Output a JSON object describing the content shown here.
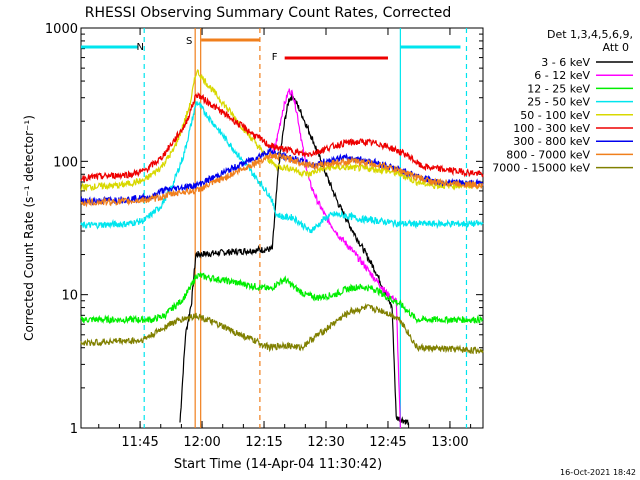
{
  "chart_data": {
    "type": "line",
    "title": "RHESSI Observing Summary Count Rates, Corrected",
    "xlabel": "Start Time (14-Apr-04 11:30:42)",
    "ylabel": "Corrected Count Rate (s⁻¹ detector⁻¹)",
    "y_scale": "log",
    "ylim": [
      1,
      1000
    ],
    "xlim": [
      "11:30:42",
      "13:08:00"
    ],
    "x_ticks": [
      "11:45",
      "12:00",
      "12:15",
      "12:30",
      "12:45",
      "13:00"
    ],
    "y_ticks": [
      "1",
      "10",
      "100",
      "1000"
    ],
    "legend_header": [
      "Det 1,3,4,5,6,9,",
      "Att 0"
    ],
    "legend_position": "right",
    "footer_date": "16-Oct-2021 18:42",
    "flags": [
      {
        "label": "N",
        "color": "#00e5ee"
      },
      {
        "label": "S",
        "color": "#f07f1c"
      },
      {
        "label": "F",
        "color": "#ee0000"
      }
    ],
    "series": [
      {
        "name": "3 - 6 keV",
        "color": "#000000",
        "points": [
          [
            "11:54:40",
            1.1
          ],
          [
            "11:55:10",
            2
          ],
          [
            "11:56:00",
            5
          ],
          [
            "11:57:30",
            9
          ],
          [
            "11:58:30",
            20
          ],
          [
            "12:17:00",
            22
          ],
          [
            "12:18:30",
            90
          ],
          [
            "12:20:00",
            200
          ],
          [
            "12:21:00",
            290
          ],
          [
            "12:22:00",
            310
          ],
          [
            "12:24:00",
            230
          ],
          [
            "12:27:00",
            140
          ],
          [
            "12:30:00",
            80
          ],
          [
            "12:33:00",
            48
          ],
          [
            "12:36:00",
            32
          ],
          [
            "12:39:00",
            22
          ],
          [
            "12:42:00",
            15
          ],
          [
            "12:44:00",
            11
          ],
          [
            "12:46:00",
            8
          ],
          [
            "12:47:00",
            1.2
          ],
          [
            "12:50:00",
            1.1
          ]
        ]
      },
      {
        "name": "6 - 12 keV",
        "color": "#ff00ff",
        "points": [
          [
            "12:16:30",
            100
          ],
          [
            "12:18:00",
            140
          ],
          [
            "12:19:30",
            240
          ],
          [
            "12:21:00",
            340
          ],
          [
            "12:22:00",
            320
          ],
          [
            "12:23:00",
            230
          ],
          [
            "12:24:30",
            120
          ],
          [
            "12:26:00",
            70
          ],
          [
            "12:28:00",
            50
          ],
          [
            "12:30:00",
            38
          ],
          [
            "12:33:00",
            28
          ],
          [
            "12:36:00",
            22
          ],
          [
            "12:39:00",
            17
          ],
          [
            "12:42:00",
            13
          ],
          [
            "12:45:00",
            10
          ],
          [
            "12:47:00",
            9
          ],
          [
            "12:48:00",
            1
          ]
        ]
      },
      {
        "name": "12 - 25 keV",
        "color": "#00ee00",
        "points": [
          [
            "11:30:42",
            6.5
          ],
          [
            "11:45:00",
            6.5
          ],
          [
            "11:48:00",
            6.5
          ],
          [
            "11:51:00",
            7
          ],
          [
            "11:53:00",
            8
          ],
          [
            "11:55:00",
            9
          ],
          [
            "11:57:00",
            11
          ],
          [
            "11:58:40",
            14
          ],
          [
            "12:16:30",
            11
          ],
          [
            "12:18:00",
            12
          ],
          [
            "12:20:00",
            13
          ],
          [
            "12:23:00",
            11
          ],
          [
            "12:25:00",
            10
          ],
          [
            "12:28:00",
            9.5
          ],
          [
            "12:32:00",
            10
          ],
          [
            "12:35:00",
            11
          ],
          [
            "12:38:00",
            11.5
          ],
          [
            "12:42:00",
            11
          ],
          [
            "12:45:00",
            9.5
          ],
          [
            "12:48:00",
            8.5
          ],
          [
            "12:52:00",
            6.5
          ],
          [
            "13:08:00",
            6.5
          ]
        ]
      },
      {
        "name": "25 - 50 keV",
        "color": "#00e5ee",
        "points": [
          [
            "11:30:42",
            33
          ],
          [
            "11:42:00",
            34
          ],
          [
            "11:46:00",
            36
          ],
          [
            "11:50:00",
            46
          ],
          [
            "11:53:00",
            68
          ],
          [
            "11:55:30",
            110
          ],
          [
            "11:57:00",
            170
          ],
          [
            "11:58:40",
            280
          ],
          [
            "12:16:30",
            55
          ],
          [
            "12:18:00",
            40
          ],
          [
            "12:20:00",
            38
          ],
          [
            "12:22:00",
            38
          ],
          [
            "12:24:00",
            34
          ],
          [
            "12:26:00",
            30
          ],
          [
            "12:28:00",
            33
          ],
          [
            "12:30:00",
            38
          ],
          [
            "12:32:00",
            40
          ],
          [
            "12:35:00",
            39
          ],
          [
            "12:38:00",
            37
          ],
          [
            "12:42:00",
            36
          ],
          [
            "12:45:00",
            35
          ],
          [
            "12:48:00",
            34
          ],
          [
            "13:08:00",
            34
          ]
        ]
      },
      {
        "name": "50 - 100 keV",
        "color": "#d8d800",
        "points": [
          [
            "11:30:42",
            64
          ],
          [
            "11:40:00",
            66
          ],
          [
            "11:46:00",
            72
          ],
          [
            "11:50:00",
            90
          ],
          [
            "11:53:00",
            120
          ],
          [
            "11:55:00",
            170
          ],
          [
            "11:57:00",
            260
          ],
          [
            "11:58:40",
            480
          ],
          [
            "12:16:30",
            100
          ],
          [
            "12:18:00",
            92
          ],
          [
            "12:20:00",
            90
          ],
          [
            "12:22:00",
            88
          ],
          [
            "12:24:00",
            82
          ],
          [
            "12:26:00",
            80
          ],
          [
            "12:28:00",
            86
          ],
          [
            "12:31:00",
            90
          ],
          [
            "12:35:00",
            90
          ],
          [
            "12:40:00",
            88
          ],
          [
            "12:44:00",
            86
          ],
          [
            "12:48:00",
            80
          ],
          [
            "12:52:00",
            70
          ],
          [
            "12:56:00",
            66
          ],
          [
            "13:08:00",
            66
          ]
        ]
      },
      {
        "name": "100 - 300 keV",
        "color": "#ee0000",
        "points": [
          [
            "11:30:42",
            75
          ],
          [
            "11:38:00",
            78
          ],
          [
            "11:43:00",
            80
          ],
          [
            "11:46:00",
            85
          ],
          [
            "11:50:00",
            105
          ],
          [
            "11:53:00",
            140
          ],
          [
            "11:56:00",
            190
          ],
          [
            "11:58:40",
            320
          ],
          [
            "12:16:30",
            130
          ],
          [
            "12:19:00",
            125
          ],
          [
            "12:22:00",
            120
          ],
          [
            "12:25:00",
            112
          ],
          [
            "12:28:00",
            118
          ],
          [
            "12:31:00",
            128
          ],
          [
            "12:35:00",
            138
          ],
          [
            "12:39:00",
            140
          ],
          [
            "12:43:00",
            135
          ],
          [
            "12:46:00",
            125
          ],
          [
            "12:50:00",
            110
          ],
          [
            "12:53:00",
            92
          ],
          [
            "12:57:00",
            88
          ],
          [
            "13:08:00",
            80
          ]
        ]
      },
      {
        "name": "300 - 800 keV",
        "color": "#0000ee",
        "points": [
          [
            "11:30:42",
            50
          ],
          [
            "11:42:00",
            52
          ],
          [
            "11:48:00",
            54
          ],
          [
            "11:50:00",
            60
          ],
          [
            "11:54:00",
            63
          ],
          [
            "11:58:40",
            66
          ],
          [
            "12:16:30",
            120
          ],
          [
            "12:19:00",
            110
          ],
          [
            "12:22:00",
            105
          ],
          [
            "12:25:00",
            98
          ],
          [
            "12:27:00",
            93
          ],
          [
            "12:30:00",
            100
          ],
          [
            "12:34:00",
            106
          ],
          [
            "12:38:00",
            104
          ],
          [
            "12:42:00",
            98
          ],
          [
            "12:46:00",
            90
          ],
          [
            "12:50:00",
            82
          ],
          [
            "12:54:00",
            74
          ],
          [
            "12:57:00",
            70
          ],
          [
            "13:08:00",
            68
          ]
        ]
      },
      {
        "name": "800 - 7000 keV",
        "color": "#f07f1c",
        "points": [
          [
            "11:30:42",
            49
          ],
          [
            "11:42:00",
            50
          ],
          [
            "11:48:00",
            52
          ],
          [
            "11:52:00",
            56
          ],
          [
            "11:55:00",
            59
          ],
          [
            "11:58:40",
            60
          ],
          [
            "12:16:30",
            110
          ],
          [
            "12:19:00",
            108
          ],
          [
            "12:22:00",
            102
          ],
          [
            "12:25:00",
            96
          ],
          [
            "12:28:00",
            92
          ],
          [
            "12:32:00",
            98
          ],
          [
            "12:36:00",
            100
          ],
          [
            "12:40:00",
            98
          ],
          [
            "12:44:00",
            92
          ],
          [
            "12:48:00",
            85
          ],
          [
            "12:52:00",
            76
          ],
          [
            "12:56:00",
            70
          ],
          [
            "13:08:00",
            66
          ]
        ]
      },
      {
        "name": "7000 - 15000 keV",
        "color": "#808000",
        "points": [
          [
            "11:30:42",
            4.3
          ],
          [
            "11:40:00",
            4.5
          ],
          [
            "11:45:00",
            4.5
          ],
          [
            "11:48:00",
            5
          ],
          [
            "11:52:00",
            6
          ],
          [
            "11:55:00",
            6.5
          ],
          [
            "11:58:40",
            7
          ],
          [
            "12:16:30",
            4
          ],
          [
            "12:20:00",
            4.2
          ],
          [
            "12:24:00",
            4
          ],
          [
            "12:26:00",
            4.5
          ],
          [
            "12:28:00",
            5
          ],
          [
            "12:30:00",
            5.5
          ],
          [
            "12:33:00",
            6.5
          ],
          [
            "12:36:00",
            7.5
          ],
          [
            "12:40:00",
            8
          ],
          [
            "12:44:00",
            7.5
          ],
          [
            "12:46:00",
            7
          ],
          [
            "12:48:00",
            6.5
          ],
          [
            "12:52:00",
            4
          ],
          [
            "13:08:00",
            3.8
          ]
        ]
      }
    ],
    "annotations": {
      "night": [
        [
          "11:30:42",
          "11:46:00"
        ],
        [
          "12:48:00",
          "13:04:00"
        ]
      ],
      "saa": [
        "11:58:20",
        "12:14:00"
      ],
      "flare": [
        "12:20:00",
        "12:45:00"
      ],
      "vertical_markers": [
        {
          "time": "11:46:00",
          "color": "#00e5ee",
          "style": "dashed"
        },
        {
          "time": "11:58:20",
          "color": "#f07f1c",
          "style": "solid"
        },
        {
          "time": "11:59:40",
          "color": "#f07f1c",
          "style": "solid"
        },
        {
          "time": "12:14:00",
          "color": "#f07f1c",
          "style": "dashed"
        },
        {
          "time": "12:48:00",
          "color": "#00e5ee",
          "style": "solid"
        },
        {
          "time": "13:04:00",
          "color": "#00e5ee",
          "style": "dashed"
        }
      ]
    }
  }
}
